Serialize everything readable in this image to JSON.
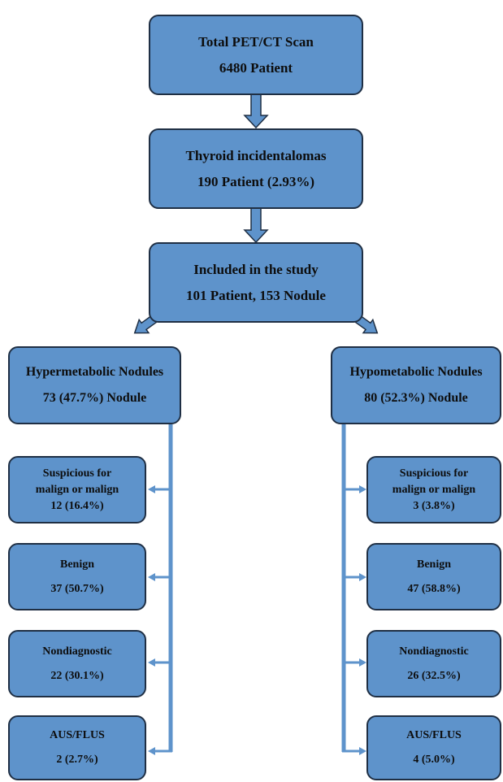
{
  "colors": {
    "box_fill": "#5e93cb",
    "box_border": "#1f2f44",
    "connector": "#5e93cb",
    "text": "#0d0d0d"
  },
  "top": {
    "total": {
      "line1": "Total PET/CT Scan",
      "line2": "6480 Patient"
    },
    "incidentalomas": {
      "line1": "Thyroid incidentalomas",
      "line2": "190 Patient (2.93%)"
    },
    "included": {
      "line1": "Included in the study",
      "line2": "101 Patient, 153 Nodule"
    }
  },
  "hyper": {
    "title": "Hypermetabolic Nodules",
    "count": "73 (47.7%) Nodule",
    "results": [
      {
        "label_line1": "Suspicious for",
        "label_line2": "malign or malign",
        "value": "12 (16.4%)"
      },
      {
        "label_line1": "Benign",
        "label_line2": "",
        "value": "37 (50.7%)"
      },
      {
        "label_line1": "Nondiagnostic",
        "label_line2": "",
        "value": "22 (30.1%)"
      },
      {
        "label_line1": "AUS/FLUS",
        "label_line2": "",
        "value": "2 (2.7%)"
      }
    ]
  },
  "hypo": {
    "title": "Hypometabolic Nodules",
    "count": "80 (52.3%) Nodule",
    "results": [
      {
        "label_line1": "Suspicious for",
        "label_line2": "malign or malign",
        "value": "3 (3.8%)"
      },
      {
        "label_line1": "Benign",
        "label_line2": "",
        "value": "47 (58.8%)"
      },
      {
        "label_line1": "Nondiagnostic",
        "label_line2": "",
        "value": "26 (32.5%)"
      },
      {
        "label_line1": "AUS/FLUS",
        "label_line2": "",
        "value": "4 (5.0%)"
      }
    ]
  }
}
